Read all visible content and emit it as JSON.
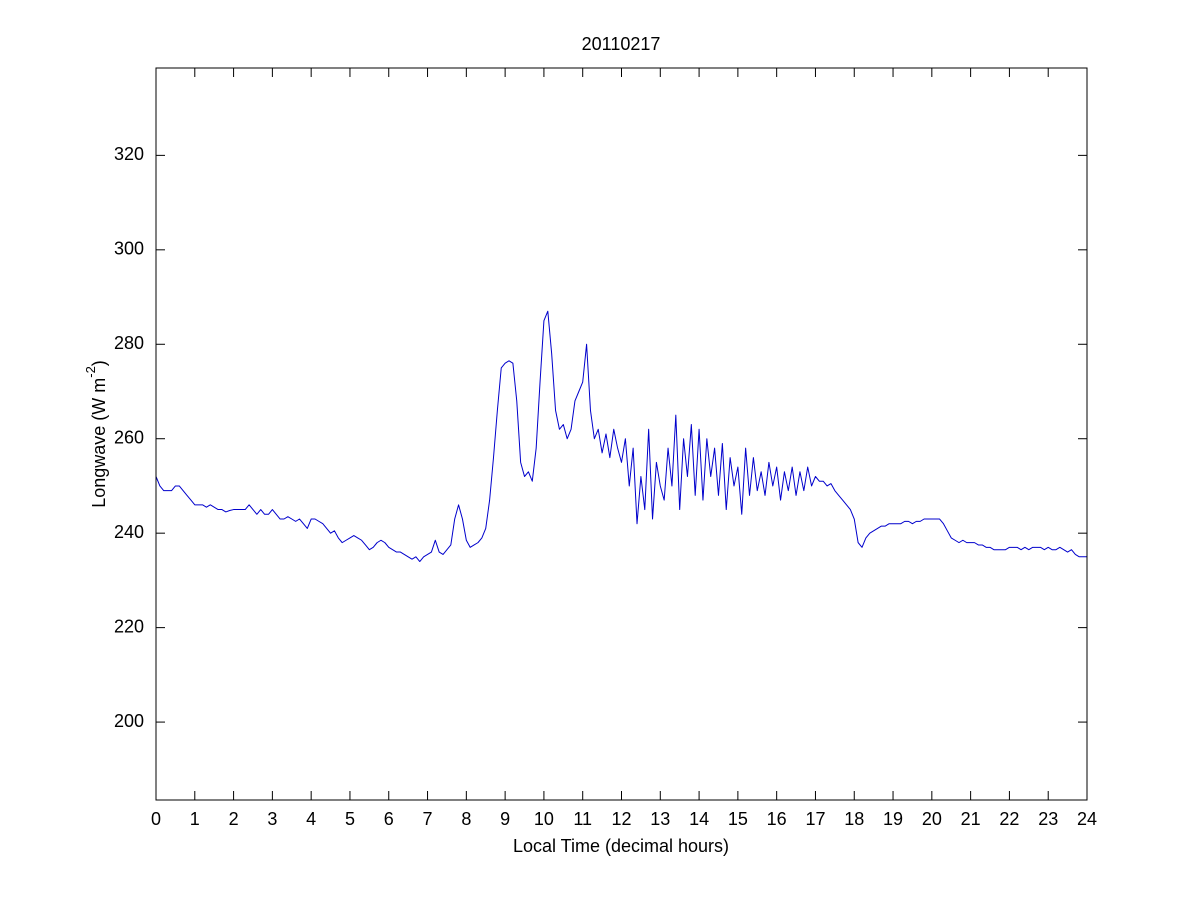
{
  "chart_data": {
    "type": "line",
    "title": "20110217",
    "xlabel": "Local Time (decimal hours)",
    "ylabel_parts": [
      "Longwave (W m",
      "-2",
      ")"
    ],
    "xlim": [
      0,
      24
    ],
    "xticks": [
      0,
      1,
      2,
      3,
      4,
      5,
      6,
      7,
      8,
      9,
      10,
      11,
      12,
      13,
      14,
      15,
      16,
      17,
      18,
      19,
      20,
      21,
      22,
      23,
      24
    ],
    "ylim": [
      183.5,
      338.5
    ],
    "yticks": [
      200,
      220,
      240,
      260,
      280,
      300,
      320
    ],
    "grid": false,
    "series": [
      {
        "color": "#0000cc",
        "x": [
          0,
          0.1,
          0.2,
          0.3,
          0.4,
          0.5,
          0.6,
          0.7,
          0.8,
          0.9,
          1,
          1.1,
          1.2,
          1.3,
          1.4,
          1.5,
          1.6,
          1.7,
          1.8,
          1.9,
          2,
          2.1,
          2.2,
          2.3,
          2.4,
          2.5,
          2.6,
          2.7,
          2.8,
          2.9,
          3,
          3.1,
          3.2,
          3.3,
          3.4,
          3.5,
          3.6,
          3.7,
          3.8,
          3.9,
          4,
          4.1,
          4.2,
          4.3,
          4.4,
          4.5,
          4.6,
          4.7,
          4.8,
          4.9,
          5,
          5.1,
          5.2,
          5.3,
          5.4,
          5.5,
          5.6,
          5.7,
          5.8,
          5.9,
          6,
          6.1,
          6.2,
          6.3,
          6.4,
          6.5,
          6.6,
          6.7,
          6.8,
          6.9,
          7,
          7.1,
          7.2,
          7.3,
          7.4,
          7.5,
          7.6,
          7.7,
          7.8,
          7.9,
          8,
          8.1,
          8.2,
          8.3,
          8.4,
          8.5,
          8.6,
          8.7,
          8.8,
          8.9,
          9,
          9.1,
          9.2,
          9.3,
          9.4,
          9.5,
          9.6,
          9.7,
          9.8,
          9.9,
          10,
          10.1,
          10.2,
          10.3,
          10.4,
          10.5,
          10.6,
          10.7,
          10.8,
          10.9,
          11,
          11.1,
          11.2,
          11.3,
          11.4,
          11.5,
          11.6,
          11.7,
          11.8,
          11.9,
          12,
          12.1,
          12.2,
          12.3,
          12.4,
          12.5,
          12.6,
          12.7,
          12.8,
          12.9,
          13,
          13.1,
          13.2,
          13.3,
          13.4,
          13.5,
          13.6,
          13.7,
          13.8,
          13.9,
          14,
          14.1,
          14.2,
          14.3,
          14.4,
          14.5,
          14.6,
          14.7,
          14.8,
          14.9,
          15,
          15.1,
          15.2,
          15.3,
          15.4,
          15.5,
          15.6,
          15.7,
          15.8,
          15.9,
          16,
          16.1,
          16.2,
          16.3,
          16.4,
          16.5,
          16.6,
          16.7,
          16.8,
          16.9,
          17,
          17.1,
          17.2,
          17.3,
          17.4,
          17.5,
          17.6,
          17.7,
          17.8,
          17.9,
          18,
          18.1,
          18.2,
          18.3,
          18.4,
          18.5,
          18.6,
          18.7,
          18.8,
          18.9,
          19,
          19.1,
          19.2,
          19.3,
          19.4,
          19.5,
          19.6,
          19.7,
          19.8,
          19.9,
          20,
          20.1,
          20.2,
          20.3,
          20.4,
          20.5,
          20.6,
          20.7,
          20.8,
          20.9,
          21,
          21.1,
          21.2,
          21.3,
          21.4,
          21.5,
          21.6,
          21.7,
          21.8,
          21.9,
          22,
          22.1,
          22.2,
          22.3,
          22.4,
          22.5,
          22.6,
          22.7,
          22.8,
          22.9,
          23,
          23.1,
          23.2,
          23.3,
          23.4,
          23.5,
          23.6,
          23.7,
          23.8,
          23.9,
          24
        ],
        "values": [
          252,
          250,
          249,
          249,
          249,
          250,
          250,
          249,
          248,
          247,
          246,
          246,
          246,
          245.5,
          246,
          245.5,
          245,
          245,
          244.5,
          244.8,
          245,
          245,
          245,
          245,
          246,
          245,
          244,
          245,
          244,
          244,
          245,
          244,
          243,
          243,
          243.5,
          243,
          242.5,
          243,
          242,
          241,
          243,
          243,
          242.5,
          242,
          241,
          240,
          240.5,
          239,
          238,
          238.5,
          239,
          239.5,
          239,
          238.5,
          237.5,
          236.5,
          237,
          238,
          238.5,
          238,
          237,
          236.5,
          236,
          236,
          235.5,
          235,
          234.5,
          235,
          234,
          235,
          235.5,
          236,
          238.5,
          236,
          235.5,
          236.5,
          237.5,
          243,
          246,
          243,
          238.5,
          237,
          237.5,
          238,
          239,
          241,
          247,
          256,
          266,
          275,
          276,
          276.5,
          276,
          268,
          255,
          252,
          253,
          251,
          258,
          272,
          285,
          287,
          278,
          266,
          262,
          263,
          260,
          262,
          268,
          270,
          272,
          280,
          266,
          260,
          262,
          257,
          261,
          256,
          262,
          258,
          255,
          260,
          250,
          258,
          242,
          252,
          245,
          262,
          243,
          255,
          250,
          247,
          258,
          250,
          265,
          245,
          260,
          252,
          263,
          248,
          262,
          247,
          260,
          252,
          258,
          248,
          259,
          245,
          256,
          250,
          254,
          244,
          258,
          248,
          256,
          249,
          253,
          248,
          255,
          250,
          254,
          247,
          253,
          249,
          254,
          248,
          253,
          249,
          254,
          250,
          252,
          251,
          251,
          250,
          250.5,
          249,
          248,
          247,
          246,
          245,
          243,
          238,
          237,
          239,
          240,
          240.5,
          241,
          241.5,
          241.5,
          242,
          242,
          242,
          242,
          242.5,
          242.5,
          242,
          242.5,
          242.5,
          243,
          243,
          243,
          243,
          243,
          242,
          240.5,
          239,
          238.5,
          238,
          238.5,
          238,
          238,
          238,
          237.5,
          237.5,
          237,
          237,
          236.5,
          236.5,
          236.5,
          236.5,
          237,
          237,
          237,
          236.5,
          237,
          236.5,
          237,
          237,
          237,
          236.5,
          237,
          236.5,
          236.5,
          237,
          236.5,
          236,
          236.5,
          235.5,
          235,
          235,
          235
        ]
      }
    ]
  }
}
